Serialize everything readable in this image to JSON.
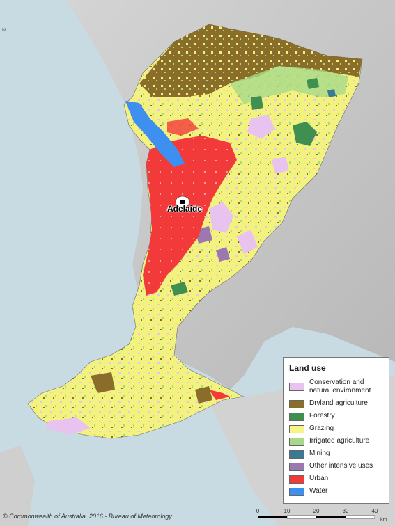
{
  "map": {
    "city": "Adelaide",
    "credit": "© Commonwealth of Australia, 2016 - Bureau of Meteorology",
    "north_marker": "N"
  },
  "legend": {
    "title": "Land use",
    "items": [
      {
        "label": "Conservation and natural environment",
        "color": "#e8c3f0"
      },
      {
        "label": "Dryland agriculture",
        "color": "#8b6d2a"
      },
      {
        "label": "Forestry",
        "color": "#3e8f50"
      },
      {
        "label": "Grazing",
        "color": "#f7f58a"
      },
      {
        "label": "Irrigated agriculture",
        "color": "#a8d98a"
      },
      {
        "label": "Mining",
        "color": "#3c7a93"
      },
      {
        "label": "Other intensive uses",
        "color": "#9b78b0"
      },
      {
        "label": "Urban",
        "color": "#f23a3a"
      },
      {
        "label": "Water",
        "color": "#3d8ff0"
      }
    ]
  },
  "scale": {
    "ticks": [
      "0",
      "10",
      "20",
      "30",
      "40"
    ],
    "unit": "km"
  }
}
